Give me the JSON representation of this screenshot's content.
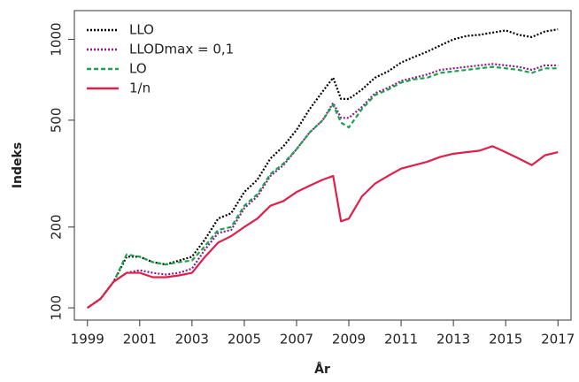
{
  "chart_data": {
    "type": "line",
    "xlabel": "År",
    "ylabel": "Indeks",
    "x": [
      1999,
      1999.5,
      2000,
      2000.5,
      2001,
      2001.5,
      2002,
      2002.5,
      2003,
      2003.5,
      2004,
      2004.5,
      2005,
      2005.5,
      2006,
      2006.5,
      2007,
      2007.5,
      2008,
      2008.4,
      2008.7,
      2009,
      2009.5,
      2010,
      2010.5,
      2011,
      2011.5,
      2012,
      2012.5,
      2013,
      2013.5,
      2014,
      2014.5,
      2015,
      2015.5,
      2016,
      2016.5,
      2017
    ],
    "series": [
      {
        "name": "LLO",
        "color": "#000000",
        "line_style": "dotted",
        "values": [
          100,
          108,
          125,
          155,
          155,
          148,
          145,
          150,
          155,
          180,
          215,
          225,
          270,
          300,
          360,
          400,
          460,
          550,
          640,
          720,
          600,
          600,
          650,
          720,
          760,
          820,
          860,
          900,
          950,
          1000,
          1030,
          1040,
          1060,
          1080,
          1040,
          1020,
          1070,
          1090
        ]
      },
      {
        "name": "LLODmax = 0,1",
        "color": "#8b1a89",
        "line_style": "dotted",
        "values": [
          100,
          108,
          125,
          135,
          138,
          135,
          133,
          135,
          140,
          165,
          190,
          195,
          235,
          260,
          310,
          340,
          390,
          450,
          500,
          580,
          510,
          510,
          560,
          630,
          660,
          700,
          720,
          740,
          770,
          780,
          790,
          800,
          810,
          800,
          790,
          770,
          800,
          800
        ]
      },
      {
        "name": "LO",
        "color": "#1aa34a",
        "line_style": "dashed",
        "values": [
          100,
          108,
          125,
          158,
          155,
          148,
          145,
          148,
          150,
          170,
          195,
          200,
          240,
          265,
          315,
          345,
          390,
          450,
          500,
          570,
          490,
          470,
          550,
          620,
          650,
          690,
          710,
          720,
          750,
          760,
          770,
          780,
          790,
          780,
          770,
          750,
          780,
          780
        ]
      },
      {
        "name": "1/n",
        "color": "#e0204b",
        "line_style": "solid",
        "values": [
          100,
          108,
          125,
          135,
          135,
          130,
          130,
          132,
          135,
          155,
          175,
          185,
          200,
          215,
          240,
          250,
          270,
          285,
          300,
          310,
          210,
          215,
          260,
          290,
          310,
          330,
          340,
          350,
          365,
          375,
          380,
          385,
          400,
          380,
          360,
          340,
          370,
          380
        ]
      }
    ],
    "xlim": [
      1998.5,
      2017.5
    ],
    "xticks": [
      1999,
      2001,
      2003,
      2005,
      2007,
      2009,
      2011,
      2013,
      2015,
      2017
    ],
    "ylim": [
      90,
      1280
    ],
    "yticks": [
      100,
      200,
      500,
      1000
    ],
    "y_scale": "log",
    "legend": "top-left",
    "grid": false
  }
}
